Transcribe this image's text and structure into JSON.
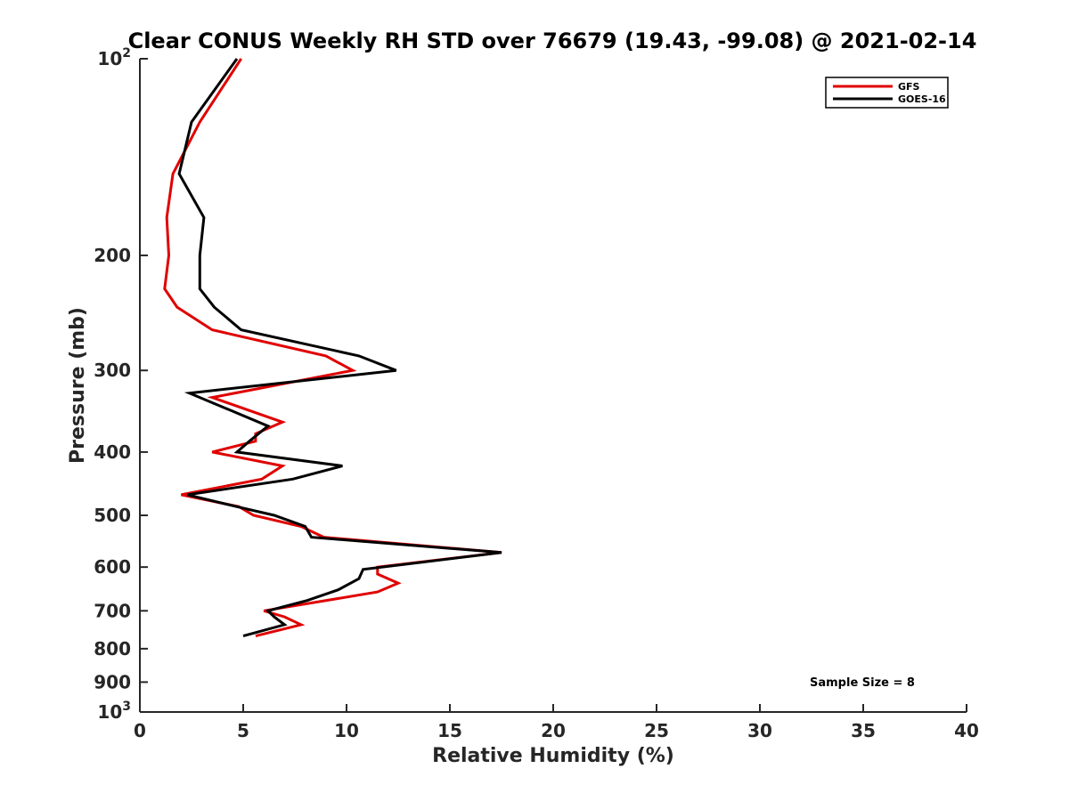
{
  "chart_data": {
    "type": "line",
    "title": "Clear CONUS Weekly RH STD over 76679 (19.43, -99.08) @ 2021-02-14",
    "xlabel": "Relative Humidity (%)",
    "ylabel": "Pressure (mb)",
    "xlim": [
      0,
      40
    ],
    "ylim": [
      100,
      1000
    ],
    "y_scale": "log",
    "y_reversed": true,
    "x_ticks": [
      0,
      5,
      10,
      15,
      20,
      25,
      30,
      35,
      40
    ],
    "y_ticks": [
      {
        "value": 100,
        "base": "10",
        "exp": "2"
      },
      {
        "value": 200,
        "label": "200"
      },
      {
        "value": 300,
        "label": "300"
      },
      {
        "value": 400,
        "label": "400"
      },
      {
        "value": 500,
        "label": "500"
      },
      {
        "value": 600,
        "label": "600"
      },
      {
        "value": 700,
        "label": "700"
      },
      {
        "value": 800,
        "label": "800"
      },
      {
        "value": 900,
        "label": "900"
      },
      {
        "value": 1000,
        "base": "10",
        "exp": "3"
      }
    ],
    "grid": false,
    "legend_position": "top-right",
    "annotation": "Sample Size = 8",
    "series": [
      {
        "name": "GFS",
        "color": "#e00000",
        "points": [
          [
            4.9,
            100
          ],
          [
            2.9,
            125
          ],
          [
            1.6,
            150
          ],
          [
            1.3,
            175
          ],
          [
            1.4,
            200
          ],
          [
            1.2,
            225
          ],
          [
            1.8,
            240
          ],
          [
            3.5,
            260
          ],
          [
            9.0,
            285
          ],
          [
            10.3,
            300
          ],
          [
            3.5,
            330
          ],
          [
            6.9,
            360
          ],
          [
            5.6,
            375
          ],
          [
            5.6,
            385
          ],
          [
            3.5,
            400
          ],
          [
            6.9,
            420
          ],
          [
            5.9,
            440
          ],
          [
            2.0,
            465
          ],
          [
            4.8,
            485
          ],
          [
            5.5,
            500
          ],
          [
            7.8,
            520
          ],
          [
            8.9,
            540
          ],
          [
            17.5,
            570
          ],
          [
            11.5,
            600
          ],
          [
            11.5,
            615
          ],
          [
            12.5,
            635
          ],
          [
            11.5,
            655
          ],
          [
            6.0,
            700
          ],
          [
            7.0,
            715
          ],
          [
            7.8,
            735
          ],
          [
            5.6,
            765
          ]
        ]
      },
      {
        "name": "GOES-16",
        "color": "#000000",
        "points": [
          [
            4.7,
            100
          ],
          [
            2.5,
            125
          ],
          [
            1.9,
            150
          ],
          [
            3.1,
            175
          ],
          [
            2.9,
            200
          ],
          [
            2.9,
            225
          ],
          [
            3.6,
            240
          ],
          [
            4.9,
            260
          ],
          [
            10.6,
            285
          ],
          [
            12.4,
            300
          ],
          [
            2.4,
            325
          ],
          [
            6.2,
            365
          ],
          [
            5.3,
            385
          ],
          [
            4.7,
            400
          ],
          [
            9.8,
            420
          ],
          [
            7.4,
            440
          ],
          [
            2.3,
            465
          ],
          [
            4.7,
            485
          ],
          [
            6.5,
            500
          ],
          [
            8.0,
            520
          ],
          [
            8.3,
            540
          ],
          [
            17.5,
            570
          ],
          [
            10.8,
            605
          ],
          [
            10.6,
            625
          ],
          [
            9.6,
            650
          ],
          [
            8.1,
            675
          ],
          [
            6.2,
            700
          ],
          [
            6.5,
            715
          ],
          [
            7.0,
            735
          ],
          [
            5.0,
            765
          ]
        ]
      }
    ]
  }
}
